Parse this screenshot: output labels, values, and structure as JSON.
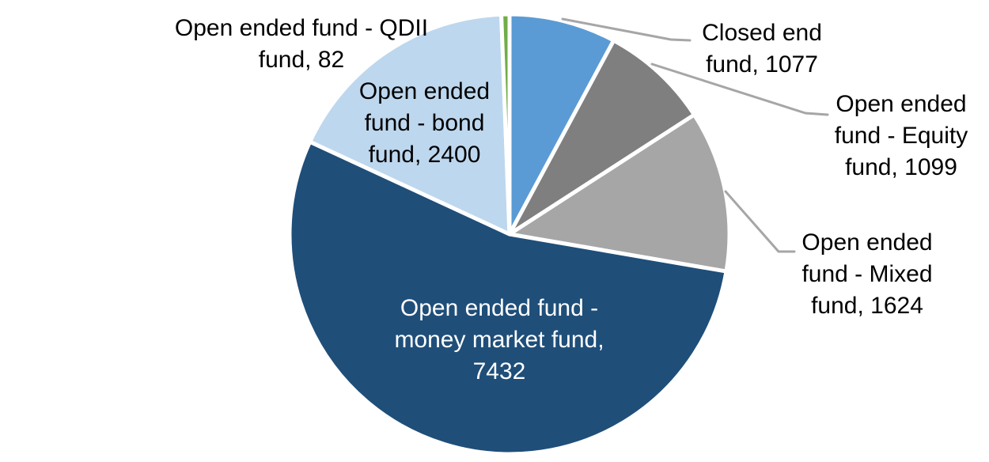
{
  "chart_data": {
    "type": "pie",
    "title": "",
    "legend_position": "none",
    "background_color": "#FFFFFF",
    "total": 13714,
    "start_angle_deg": 0,
    "direction": "clockwise",
    "slice_border_color": "#FFFFFF",
    "leader_line_color": "#A6A6A6",
    "label_format": "{category}, {value}",
    "categories": [
      "Closed end fund",
      "Open ended fund - Equity fund",
      "Open ended fund - Mixed fund",
      "Open ended fund - money market fund",
      "Open ended fund - bond fund",
      "Open ended fund - QDII fund"
    ],
    "values": [
      1077,
      1099,
      1624,
      7432,
      2400,
      82
    ],
    "colors": [
      "#5B9BD5",
      "#7F7F7F",
      "#A6A6A6",
      "#1F4E79",
      "#BDD7EE",
      "#70AD47"
    ],
    "label_texts": [
      "Closed end fund, 1077",
      "Open ended fund - Equity fund, 1099",
      "Open ended fund - Mixed fund, 1624",
      "Open ended fund - money market fund, 7432",
      "Open ended fund - bond fund, 2400",
      "Open ended fund - QDII fund, 82"
    ],
    "label_placements": [
      "outside",
      "outside",
      "outside",
      "inside",
      "outside",
      "outside"
    ],
    "label_text_colors": [
      "#000000",
      "#000000",
      "#000000",
      "#FFFFFF",
      "#000000",
      "#000000"
    ]
  }
}
